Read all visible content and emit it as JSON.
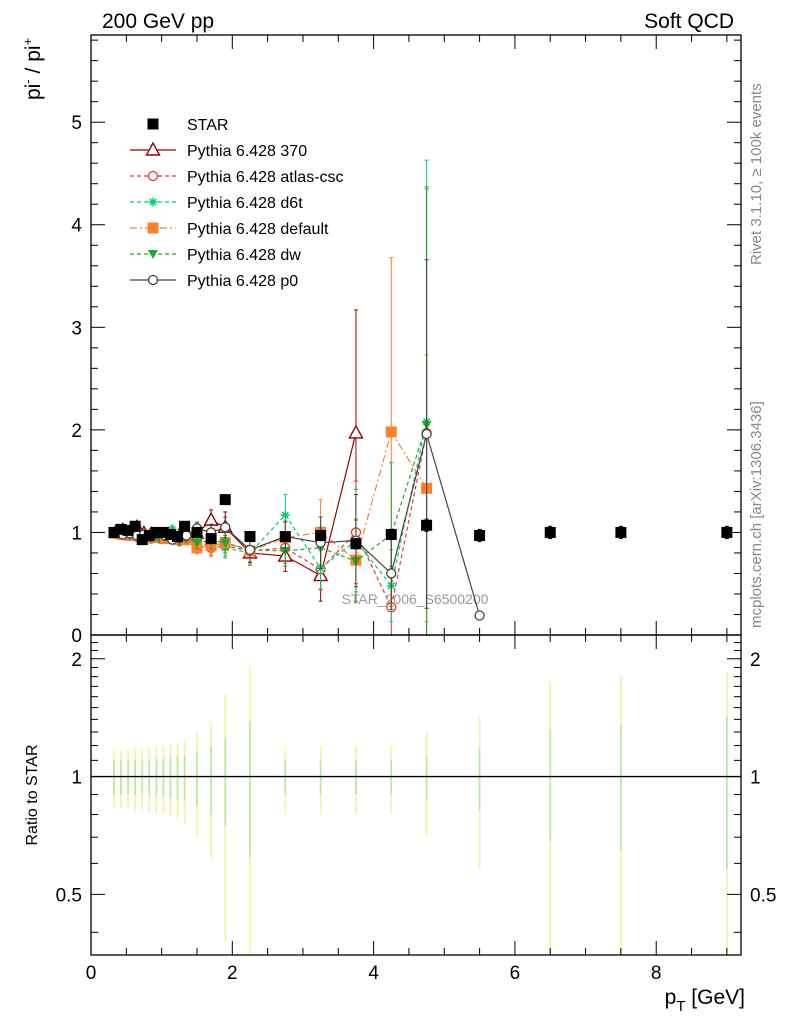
{
  "header": {
    "left_title": "200 GeV pp",
    "right_title": "Soft QCD"
  },
  "side_labels": {
    "rivet": "Rivet 3.1.10, ≥ 100k events",
    "mcplots": "mcplots.cern.ch [arXiv:1306.3436]"
  },
  "chart_data": [
    {
      "type": "scatter",
      "panel": "main",
      "ylabel_main": "pi",
      "ylabel_sup1": "-",
      "ylabel_mid": " / pi",
      "ylabel_sup2": "+",
      "xlim": [
        0,
        9.2
      ],
      "ylim": [
        0,
        5.85
      ],
      "yticks": [
        0,
        1,
        2,
        3,
        4,
        5
      ],
      "watermark": "STAR_2006_S6500200",
      "legend_position": "top-left",
      "series": [
        {
          "name": "STAR",
          "color": "#000000",
          "marker": "square",
          "line": "none",
          "x": [
            0.325,
            0.425,
            0.525,
            0.625,
            0.725,
            0.825,
            0.925,
            1.025,
            1.125,
            1.225,
            1.325,
            1.5,
            1.7,
            1.9,
            2.25,
            2.75,
            3.25,
            3.75,
            4.25,
            4.75,
            5.5,
            6.5,
            7.5,
            9.0
          ],
          "y": [
            1.0,
            1.03,
            1.02,
            1.06,
            0.93,
            0.97,
            1.0,
            1.0,
            0.98,
            0.96,
            1.06,
            1.0,
            0.94,
            1.32,
            0.96,
            0.96,
            0.97,
            0.89,
            0.98,
            1.07,
            0.97,
            1.0,
            1.0,
            1.0
          ],
          "err": [
            0.02,
            0.02,
            0.02,
            0.02,
            0.02,
            0.02,
            0.02,
            0.02,
            0.03,
            0.03,
            0.03,
            0.03,
            0.03,
            0.04,
            0.04,
            0.04,
            0.05,
            0.05,
            0.05,
            0.06,
            0.06,
            0.06,
            0.06,
            0.06
          ]
        },
        {
          "name": "Pythia 6.428 370",
          "color": "#990000",
          "marker": "triangle-open",
          "line": "solid",
          "x": [
            0.35,
            0.45,
            0.55,
            0.65,
            0.75,
            0.85,
            0.95,
            1.05,
            1.15,
            1.25,
            1.35,
            1.5,
            1.7,
            1.9,
            2.25,
            2.75,
            3.25,
            3.75
          ],
          "y": [
            1.0,
            1.02,
            1.0,
            1.05,
            0.99,
            0.98,
            0.97,
            0.95,
            0.99,
            0.97,
            0.98,
            0.99,
            1.12,
            1.05,
            0.8,
            0.77,
            0.58,
            1.97
          ],
          "err": [
            0.02,
            0.02,
            0.02,
            0.03,
            0.03,
            0.03,
            0.03,
            0.04,
            0.04,
            0.05,
            0.05,
            0.06,
            0.1,
            0.15,
            0.12,
            0.15,
            0.25,
            1.2
          ]
        },
        {
          "name": "Pythia 6.428 atlas-csc",
          "color": "#ee3333",
          "marker": "circle-open",
          "line": "dashed",
          "x": [
            0.35,
            0.45,
            0.55,
            0.65,
            0.75,
            0.85,
            0.95,
            1.05,
            1.15,
            1.25,
            1.35,
            1.5,
            1.7,
            1.9,
            2.25,
            2.75,
            3.25,
            3.75,
            4.25,
            4.75
          ],
          "y": [
            0.99,
            0.98,
            0.97,
            0.96,
            0.95,
            0.94,
            0.96,
            0.95,
            0.93,
            0.92,
            0.94,
            0.92,
            0.85,
            0.87,
            0.82,
            0.85,
            0.64,
            1.0,
            0.27,
            1.97
          ],
          "err": [
            0.02,
            0.02,
            0.02,
            0.03,
            0.03,
            0.03,
            0.03,
            0.04,
            0.04,
            0.05,
            0.05,
            0.06,
            0.08,
            0.1,
            0.12,
            0.15,
            0.2,
            0.5,
            0.4,
            2.4
          ]
        },
        {
          "name": "Pythia 6.428 d6t",
          "color": "#00cc77",
          "marker": "star",
          "line": "dashed",
          "x": [
            0.35,
            0.45,
            0.55,
            0.65,
            0.75,
            0.85,
            0.95,
            1.05,
            1.15,
            1.25,
            1.35,
            1.5,
            1.7,
            1.9,
            2.25,
            2.75,
            3.25,
            3.75,
            4.25,
            4.75
          ],
          "y": [
            0.99,
            0.97,
            0.99,
            0.98,
            0.96,
            0.97,
            0.95,
            1.0,
            1.03,
            0.97,
            0.99,
            0.96,
            0.93,
            0.85,
            0.8,
            1.17,
            0.65,
            0.92,
            0.48,
            2.08
          ],
          "err": [
            0.02,
            0.02,
            0.02,
            0.03,
            0.03,
            0.03,
            0.03,
            0.04,
            0.04,
            0.05,
            0.05,
            0.06,
            0.08,
            0.1,
            0.12,
            0.2,
            0.2,
            0.5,
            0.35,
            2.55
          ]
        },
        {
          "name": "Pythia 6.428 default",
          "color": "#ff7f2a",
          "marker": "square",
          "line": "dashdot",
          "x": [
            0.35,
            0.45,
            0.55,
            0.65,
            0.75,
            0.85,
            0.95,
            1.05,
            1.15,
            1.25,
            1.35,
            1.5,
            1.7,
            1.9,
            2.25,
            2.75,
            3.25,
            3.75,
            4.25,
            4.75
          ],
          "y": [
            0.99,
            0.98,
            0.97,
            0.97,
            0.96,
            0.95,
            0.96,
            0.94,
            0.95,
            0.93,
            0.93,
            0.85,
            0.87,
            0.9,
            0.82,
            0.95,
            1.0,
            0.73,
            1.98,
            1.43
          ],
          "err": [
            0.02,
            0.02,
            0.02,
            0.03,
            0.03,
            0.03,
            0.03,
            0.04,
            0.04,
            0.05,
            0.05,
            0.06,
            0.08,
            0.1,
            0.12,
            0.15,
            0.32,
            0.4,
            1.7,
            1.3
          ]
        },
        {
          "name": "Pythia 6.428 dw",
          "color": "#22aa22",
          "marker": "triangle-down",
          "line": "dashed",
          "x": [
            0.35,
            0.45,
            0.55,
            0.65,
            0.75,
            0.85,
            0.95,
            1.05,
            1.15,
            1.25,
            1.35,
            1.5,
            1.7,
            1.9,
            2.25,
            2.75,
            3.25,
            3.75,
            4.25,
            4.75
          ],
          "y": [
            0.98,
            0.97,
            0.97,
            0.96,
            0.98,
            0.95,
            0.95,
            0.96,
            0.95,
            0.93,
            0.95,
            0.9,
            0.92,
            0.9,
            0.83,
            0.82,
            0.85,
            0.72,
            0.98,
            2.05
          ],
          "err": [
            0.02,
            0.02,
            0.02,
            0.03,
            0.03,
            0.03,
            0.03,
            0.04,
            0.04,
            0.05,
            0.05,
            0.06,
            0.08,
            0.1,
            0.12,
            0.15,
            0.2,
            0.4,
            0.7,
            2.3
          ]
        },
        {
          "name": "Pythia 6.428 p0",
          "color": "#444444",
          "marker": "circle-open",
          "line": "solid",
          "x": [
            0.35,
            0.45,
            0.55,
            0.65,
            0.75,
            0.85,
            0.95,
            1.05,
            1.15,
            1.25,
            1.35,
            1.5,
            1.7,
            1.9,
            2.25,
            2.75,
            3.25,
            3.75,
            4.25,
            4.75,
            5.5
          ],
          "y": [
            1.0,
            0.98,
            0.99,
            0.97,
            0.98,
            0.96,
            0.99,
            0.97,
            0.93,
            0.95,
            0.97,
            1.04,
            1.0,
            1.05,
            0.83,
            0.96,
            0.9,
            0.92,
            0.6,
            1.96,
            0.19
          ],
          "err": [
            0.02,
            0.02,
            0.02,
            0.03,
            0.03,
            0.03,
            0.03,
            0.04,
            0.04,
            0.05,
            0.05,
            0.06,
            0.08,
            0.1,
            0.12,
            0.15,
            0.25,
            0.45,
            0.35,
            1.7,
            0.0
          ]
        }
      ]
    },
    {
      "type": "line",
      "panel": "ratio",
      "ylabel": "Ratio to STAR",
      "xlabel_main": "p",
      "xlabel_sub": "T",
      "xlabel_unit": " [GeV]",
      "xlim": [
        0,
        9.2
      ],
      "ylim": [
        0.35,
        2.3
      ],
      "xticks": [
        0,
        2,
        4,
        6,
        8
      ],
      "yticks": [
        0.5,
        1,
        2
      ],
      "reference_line": 1,
      "uncertainty_band": {
        "x": [
          0.325,
          0.425,
          0.525,
          0.625,
          0.725,
          0.825,
          0.925,
          1.025,
          1.125,
          1.225,
          1.325,
          1.5,
          1.7,
          1.9,
          2.25,
          2.75,
          3.25,
          3.75,
          4.25,
          4.75,
          5.5,
          6.5,
          7.5,
          9.0
        ],
        "inner": [
          0.1,
          0.1,
          0.1,
          0.1,
          0.1,
          0.11,
          0.11,
          0.11,
          0.12,
          0.13,
          0.13,
          0.16,
          0.2,
          0.25,
          0.38,
          0.1,
          0.1,
          0.1,
          0.1,
          0.13,
          0.18,
          0.32,
          0.35,
          0.42
        ],
        "outer": [
          0.17,
          0.17,
          0.17,
          0.18,
          0.18,
          0.19,
          0.2,
          0.2,
          0.21,
          0.22,
          0.24,
          0.3,
          0.38,
          0.62,
          0.9,
          0.2,
          0.2,
          0.2,
          0.2,
          0.3,
          0.42,
          0.75,
          0.8,
          0.85
        ]
      }
    }
  ]
}
